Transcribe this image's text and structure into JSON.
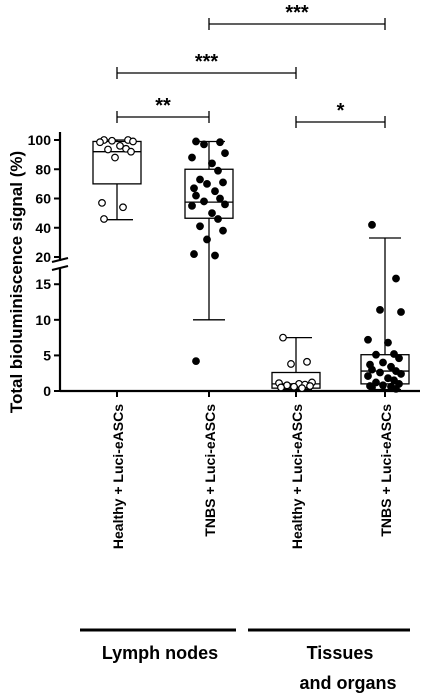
{
  "chart_data": {
    "type": "box",
    "ylabel": "Total bioluminiscence signal (%)",
    "y_axis": {
      "broken": true,
      "lower_segment": {
        "range": [
          0,
          17
        ],
        "ticks": [
          0,
          5,
          10,
          15
        ]
      },
      "upper_segment": {
        "range": [
          20,
          100
        ],
        "ticks": [
          20,
          40,
          60,
          80,
          100
        ]
      }
    },
    "categories": [
      "Healthy + Luci-eASCs",
      "TNBS + Luci-eASCs",
      "Healthy + Luci-eASCs",
      "TNBS + Luci-eASCs"
    ],
    "groups": [
      {
        "label": "Lymph nodes",
        "members": [
          0,
          1
        ]
      },
      {
        "label": "Tissues and organs",
        "lines": [
          "Tissues",
          "and organs"
        ],
        "members": [
          2,
          3
        ]
      }
    ],
    "series": [
      {
        "marker": "open",
        "box": {
          "whisker_low": 45.5,
          "q1": 70,
          "median": 92,
          "q3": 99,
          "whisker_high": 100
        },
        "points": [
          100,
          100,
          99.5,
          99,
          98.5,
          96,
          94,
          93.5,
          92,
          88,
          57,
          54,
          46
        ]
      },
      {
        "marker": "filled",
        "box": {
          "whisker_low": 10,
          "q1": 46.5,
          "median": 57.5,
          "q3": 80,
          "whisker_high": 99
        },
        "points": [
          99,
          98.5,
          97,
          91,
          88,
          84,
          79,
          73,
          71,
          70,
          67,
          65,
          62,
          60,
          58,
          56,
          55,
          50,
          46,
          41,
          38,
          32,
          22,
          21,
          4.2
        ]
      },
      {
        "marker": "open",
        "box": {
          "whisker_low": 0.2,
          "q1": 0.4,
          "median": 1.0,
          "q3": 2.6,
          "whisker_high": 7.5
        },
        "points": [
          7.5,
          4.1,
          3.8,
          1.2,
          1.1,
          1.0,
          0.9,
          0.8,
          0.7,
          0.6,
          0.5,
          0.4
        ]
      },
      {
        "marker": "filled",
        "box": {
          "whisker_low": 0.2,
          "q1": 1.0,
          "median": 2.8,
          "q3": 5.1,
          "whisker_high": 33
        },
        "points": [
          42,
          15.8,
          11.4,
          11.1,
          7.2,
          6.8,
          5.2,
          5.1,
          4.6,
          4.0,
          3.7,
          3.4,
          3.0,
          2.8,
          2.6,
          2.4,
          2.1,
          1.8,
          1.5,
          1.2,
          1.0,
          0.8,
          0.7,
          0.6,
          0.5,
          0.3
        ]
      }
    ],
    "significance": [
      {
        "from": 1,
        "to": 3,
        "label": "***"
      },
      {
        "from": 0,
        "to": 2,
        "label": "***"
      },
      {
        "from": 0,
        "to": 1,
        "label": "**"
      },
      {
        "from": 2,
        "to": 3,
        "label": "*"
      }
    ]
  }
}
